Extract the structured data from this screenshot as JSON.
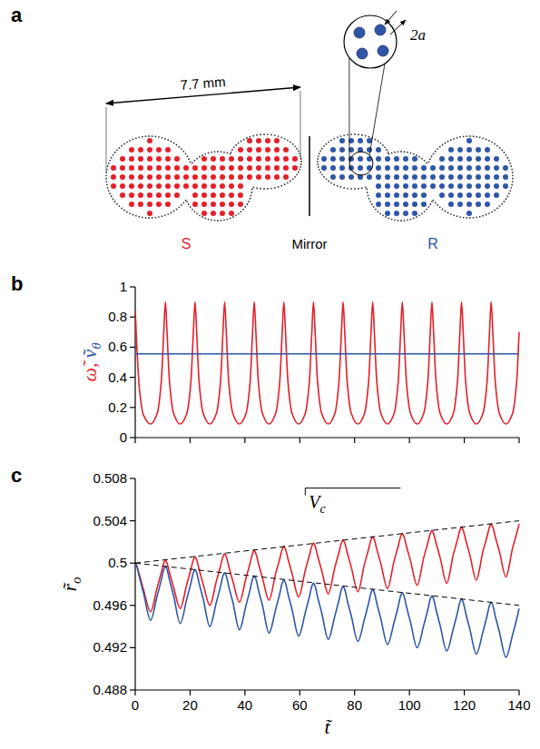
{
  "diagram": {
    "panel_label": "a",
    "dimension": "7.7 mm",
    "inset_label": "2a",
    "mirror_label": "Mirror",
    "shapes": [
      {
        "label": "S",
        "color": "#e4202a"
      },
      {
        "label": "R",
        "color": "#2f56a6"
      }
    ]
  },
  "chart_data": [
    {
      "type": "line",
      "panel_label": "b",
      "x": [
        0,
        0.6,
        1.5,
        3,
        5.6,
        8,
        9.5,
        10.4,
        11,
        11.6,
        12.5,
        14,
        16.4,
        18.8,
        20.3,
        21.2,
        21.8,
        22.4,
        23.3,
        24.8,
        27.2,
        29.6,
        31.1,
        32,
        32.6,
        33.2,
        34.1,
        35.6,
        38,
        40.4,
        41.9,
        42.8,
        43.4,
        44,
        44.9,
        46.4,
        48.8,
        51.2,
        52.7,
        53.6,
        54.2,
        54.8,
        55.7,
        57.2,
        59.6,
        62,
        63.5,
        64.4,
        65,
        65.6,
        66.5,
        68,
        70.4,
        72.8,
        74.3,
        75.2,
        75.8,
        76.4,
        77.3,
        78.8,
        81.2,
        83.6,
        85.1,
        86,
        86.6,
        87.2,
        88.1,
        89.6,
        92,
        94.4,
        95.9,
        96.8,
        97.4,
        98,
        98.9,
        100.4,
        102.8,
        105.2,
        106.7,
        107.6,
        108.2,
        108.8,
        109.7,
        111.2,
        113.6,
        116,
        117.5,
        118.4,
        119,
        119.6,
        120.5,
        122,
        124.4,
        126.8,
        128.3,
        129.2,
        129.8,
        130.4,
        131.3,
        132.8,
        135.2,
        137.6,
        139.1,
        140
      ],
      "xlim": [
        0,
        140
      ],
      "xticks": [
        0,
        20,
        40,
        60,
        80,
        100,
        120,
        140
      ],
      "ylim": [
        0,
        1
      ],
      "yticks": [
        0,
        0.2,
        0.4,
        0.6,
        0.8,
        1
      ],
      "tick_labels": "y",
      "ylabel": [
        {
          "text": "ω̃,",
          "color": "#e4202a"
        },
        {
          "text": "ṽ",
          "sub": "θ",
          "color": "#2f56a6"
        }
      ],
      "series": [
        {
          "color": "#e4202a",
          "values": [
            0.85,
            0.6,
            0.33,
            0.15,
            0.09,
            0.16,
            0.37,
            0.7,
            0.9,
            0.7,
            0.37,
            0.16,
            0.09,
            0.16,
            0.37,
            0.7,
            0.9,
            0.7,
            0.37,
            0.16,
            0.09,
            0.16,
            0.37,
            0.7,
            0.9,
            0.7,
            0.37,
            0.16,
            0.09,
            0.16,
            0.37,
            0.7,
            0.9,
            0.7,
            0.37,
            0.16,
            0.09,
            0.16,
            0.37,
            0.7,
            0.9,
            0.7,
            0.37,
            0.16,
            0.09,
            0.16,
            0.37,
            0.7,
            0.9,
            0.7,
            0.37,
            0.16,
            0.09,
            0.16,
            0.37,
            0.7,
            0.9,
            0.7,
            0.37,
            0.16,
            0.09,
            0.16,
            0.37,
            0.7,
            0.9,
            0.7,
            0.37,
            0.16,
            0.09,
            0.16,
            0.37,
            0.7,
            0.9,
            0.7,
            0.37,
            0.16,
            0.09,
            0.16,
            0.37,
            0.7,
            0.9,
            0.7,
            0.37,
            0.16,
            0.09,
            0.16,
            0.37,
            0.7,
            0.9,
            0.7,
            0.37,
            0.16,
            0.09,
            0.16,
            0.37,
            0.7,
            0.9,
            0.7,
            0.37,
            0.16,
            0.09,
            0.16,
            0.37,
            0.7
          ]
        },
        {
          "color": "#2f56a6",
          "x": [
            0,
            35,
            70,
            105,
            140
          ],
          "values": [
            0.556,
            0.556,
            0.556,
            0.556,
            0.556
          ]
        }
      ]
    },
    {
      "type": "line",
      "panel_label": "c",
      "x": [
        0,
        0.6,
        1.5,
        3,
        5.6,
        8,
        9.5,
        10.4,
        11,
        11.6,
        12.5,
        14,
        16.4,
        18.8,
        20.3,
        21.2,
        21.8,
        22.4,
        23.3,
        24.8,
        27.2,
        29.6,
        31.1,
        32,
        32.6,
        33.2,
        34.1,
        35.6,
        38,
        40.4,
        41.9,
        42.8,
        43.4,
        44,
        44.9,
        46.4,
        48.8,
        51.2,
        52.7,
        53.6,
        54.2,
        54.8,
        55.7,
        57.2,
        59.6,
        62,
        63.5,
        64.4,
        65,
        65.6,
        66.5,
        68,
        70.4,
        72.8,
        74.3,
        75.2,
        75.8,
        76.4,
        77.3,
        78.8,
        81.2,
        83.6,
        85.1,
        86,
        86.6,
        87.2,
        88.1,
        89.6,
        92,
        94.4,
        95.9,
        96.8,
        97.4,
        98,
        98.9,
        100.4,
        102.8,
        105.2,
        106.7,
        107.6,
        108.2,
        108.8,
        109.7,
        111.2,
        113.6,
        116,
        117.5,
        118.4,
        119,
        119.6,
        120.5,
        122,
        124.4,
        126.8,
        128.3,
        129.2,
        129.8,
        130.4,
        131.3,
        132.8,
        135.2,
        137.6,
        139.1,
        140
      ],
      "xlim": [
        0,
        140
      ],
      "xticks": [
        0,
        20,
        40,
        60,
        80,
        100,
        120,
        140
      ],
      "ylim": [
        0.488,
        0.508
      ],
      "yticks": [
        0.488,
        0.492,
        0.496,
        0.5,
        0.504,
        0.508
      ],
      "xlabel": [
        {
          "text": "t̃"
        }
      ],
      "ylabel": [
        {
          "text": "r̃",
          "sub": "o"
        }
      ],
      "annotations": [
        {
          "text": "V",
          "sub": "c",
          "x": 62,
          "y": 0.5052
        }
      ],
      "series": [
        {
          "color": "#e4202a",
          "values": [
            0.5,
            0.4997,
            0.4989,
            0.4975,
            0.4954,
            0.4977,
            0.4991,
            0.5,
            0.5003,
            0.5,
            0.4991,
            0.4977,
            0.4957,
            0.498,
            0.4994,
            0.5003,
            0.5006,
            0.5003,
            0.4994,
            0.498,
            0.496,
            0.4983,
            0.4997,
            0.5006,
            0.5009,
            0.5006,
            0.4997,
            0.4983,
            0.4963,
            0.4986,
            0.5,
            0.5009,
            0.5012,
            0.5009,
            0.5,
            0.4986,
            0.4965,
            0.499,
            0.5004,
            0.5013,
            0.5016,
            0.5013,
            0.5004,
            0.499,
            0.4968,
            0.4993,
            0.5007,
            0.5016,
            0.5019,
            0.5016,
            0.5007,
            0.4993,
            0.4971,
            0.4996,
            0.501,
            0.5019,
            0.5022,
            0.5019,
            0.501,
            0.4996,
            0.4973,
            0.4999,
            0.5013,
            0.5022,
            0.5025,
            0.5022,
            0.5013,
            0.4999,
            0.4976,
            0.5002,
            0.5016,
            0.5025,
            0.5028,
            0.5025,
            0.5016,
            0.5002,
            0.4979,
            0.5005,
            0.5019,
            0.5028,
            0.5031,
            0.5028,
            0.5019,
            0.5005,
            0.4981,
            0.5008,
            0.5022,
            0.5031,
            0.5034,
            0.5031,
            0.5022,
            0.5008,
            0.4984,
            0.5011,
            0.5025,
            0.5034,
            0.5037,
            0.5034,
            0.5025,
            0.5011,
            0.4987,
            0.5014,
            0.5028,
            0.5037
          ]
        },
        {
          "color": "#2f56a6",
          "values": [
            0.5,
            0.4997,
            0.4987,
            0.4972,
            0.4946,
            0.4969,
            0.4984,
            0.4994,
            0.4997,
            0.4994,
            0.4984,
            0.4969,
            0.4943,
            0.4966,
            0.4981,
            0.4991,
            0.4994,
            0.4991,
            0.4981,
            0.4966,
            0.494,
            0.4963,
            0.4978,
            0.4988,
            0.4991,
            0.4988,
            0.4978,
            0.4963,
            0.4937,
            0.496,
            0.4975,
            0.4985,
            0.4988,
            0.4985,
            0.4975,
            0.496,
            0.4934,
            0.4956,
            0.4971,
            0.4981,
            0.4984,
            0.4981,
            0.4971,
            0.4956,
            0.4931,
            0.4953,
            0.4968,
            0.4978,
            0.4981,
            0.4978,
            0.4968,
            0.4953,
            0.4928,
            0.495,
            0.4965,
            0.4975,
            0.4978,
            0.4975,
            0.4965,
            0.495,
            0.4926,
            0.4947,
            0.4962,
            0.4972,
            0.4975,
            0.4972,
            0.4962,
            0.4947,
            0.4923,
            0.4944,
            0.4959,
            0.4969,
            0.4972,
            0.4969,
            0.4959,
            0.4944,
            0.492,
            0.4941,
            0.4956,
            0.4966,
            0.4969,
            0.4966,
            0.4956,
            0.4941,
            0.4917,
            0.4938,
            0.4953,
            0.4963,
            0.4966,
            0.4963,
            0.4953,
            0.4938,
            0.4914,
            0.4935,
            0.495,
            0.496,
            0.4963,
            0.496,
            0.495,
            0.4935,
            0.4911,
            0.4932,
            0.4947,
            0.4957
          ]
        },
        {
          "color": "#000000",
          "line_style": "dashed",
          "x": [
            0,
            140
          ],
          "values": [
            0.5,
            0.504
          ]
        },
        {
          "color": "#000000",
          "line_style": "dashed",
          "x": [
            0,
            140
          ],
          "values": [
            0.5,
            0.496
          ]
        }
      ]
    }
  ]
}
